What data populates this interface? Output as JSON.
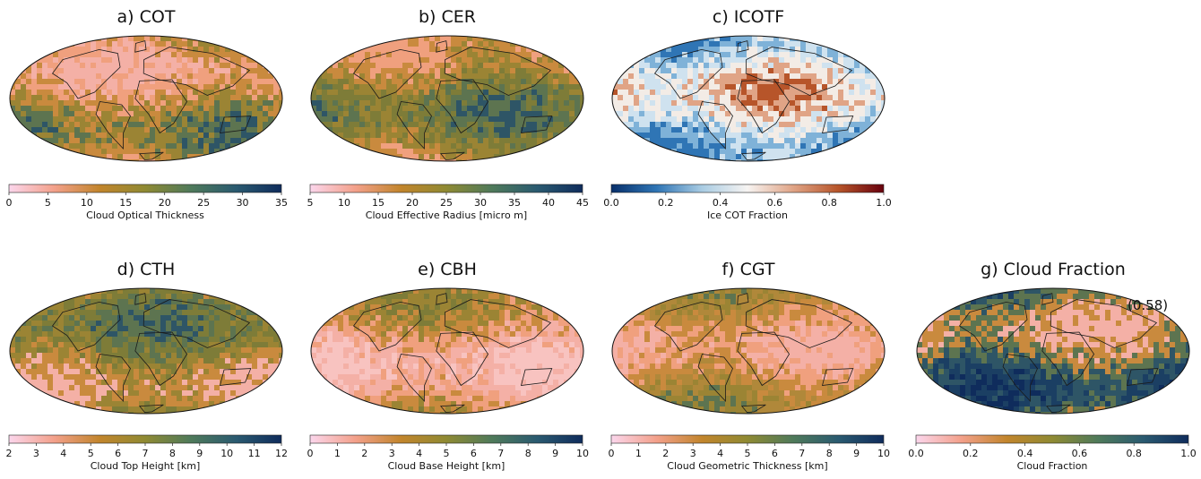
{
  "chart_data": [
    {
      "type": "heatmap",
      "title": "a) COT",
      "colorbar": {
        "label": "Cloud Optical Thickness",
        "range": [
          0,
          35
        ],
        "ticks": [
          "0",
          "5",
          "10",
          "15",
          "20",
          "25",
          "30",
          "35"
        ],
        "colors": [
          "#fbd6ec",
          "#f3a08a",
          "#c2852c",
          "#8f8a33",
          "#4f7a5a",
          "#2a5a70",
          "#0f2c5c"
        ]
      },
      "map_colors": [
        "#f4b0a6",
        "#f0a07e",
        "#c98a3e",
        "#9b8434",
        "#5d7450",
        "#2e5566"
      ]
    },
    {
      "type": "heatmap",
      "title": "b) CER",
      "colorbar": {
        "label": "Cloud Effective Radius [micro m]",
        "range": [
          5,
          45
        ],
        "ticks": [
          "5",
          "10",
          "15",
          "20",
          "25",
          "30",
          "35",
          "40",
          "45"
        ],
        "colors": [
          "#fbd6ec",
          "#f3a08a",
          "#c2852c",
          "#8f8a33",
          "#4f7a5a",
          "#2a5a70",
          "#0f2c5c"
        ]
      },
      "map_colors": [
        "#f0a07e",
        "#c98a3e",
        "#9b8434",
        "#7e7c38",
        "#5d7450",
        "#2e5566"
      ]
    },
    {
      "type": "heatmap",
      "title": "c)  ICOTF",
      "colorbar": {
        "label": "Ice COT Fraction",
        "range": [
          0,
          1
        ],
        "ticks": [
          "0.0",
          "0.2",
          "0.4",
          "0.6",
          "0.8",
          "1.0"
        ],
        "colors": [
          "#08306b",
          "#2f75b5",
          "#a9cce3",
          "#f7f4f2",
          "#e0a486",
          "#b7552a",
          "#67000d"
        ]
      },
      "map_colors": [
        "#2f75b5",
        "#7fb2d8",
        "#cfe2ef",
        "#f3ece6",
        "#e0a486",
        "#b7552a"
      ]
    },
    {
      "type": "heatmap",
      "title": "d) CTH",
      "colorbar": {
        "label": "Cloud Top Height [km]",
        "range": [
          2,
          12
        ],
        "ticks": [
          "2",
          "3",
          "4",
          "5",
          "6",
          "7",
          "8",
          "9",
          "10",
          "11",
          "12"
        ],
        "colors": [
          "#fbd6ec",
          "#f3a08a",
          "#c2852c",
          "#8f8a33",
          "#4f7a5a",
          "#2a5a70",
          "#0f2c5c"
        ]
      },
      "map_colors": [
        "#f4b0a6",
        "#c98a3e",
        "#9b8434",
        "#7e7c38",
        "#5d7450",
        "#2e5566"
      ]
    },
    {
      "type": "heatmap",
      "title": "e) CBH",
      "colorbar": {
        "label": "Cloud Base Height [km]",
        "range": [
          0,
          10
        ],
        "ticks": [
          "0",
          "1",
          "2",
          "3",
          "4",
          "5",
          "6",
          "7",
          "8",
          "9",
          "10"
        ],
        "colors": [
          "#fbd6ec",
          "#f3a08a",
          "#c2852c",
          "#8f8a33",
          "#4f7a5a",
          "#2a5a70",
          "#0f2c5c"
        ]
      },
      "map_colors": [
        "#f8c3c0",
        "#f4b0a6",
        "#f0a07e",
        "#c98a3e",
        "#9b8434",
        "#7e7c38"
      ]
    },
    {
      "type": "heatmap",
      "title": "f) CGT",
      "colorbar": {
        "label": "Cloud Geometric Thickness [km]",
        "range": [
          0,
          10
        ],
        "ticks": [
          "0",
          "1",
          "2",
          "3",
          "4",
          "5",
          "6",
          "7",
          "8",
          "9",
          "10"
        ],
        "colors": [
          "#fbd6ec",
          "#f3a08a",
          "#c2852c",
          "#8f8a33",
          "#4f7a5a",
          "#2a5a70",
          "#0f2c5c"
        ]
      },
      "map_colors": [
        "#f4b0a6",
        "#f0a07e",
        "#c98a3e",
        "#b0883a",
        "#9b8434",
        "#5d7450"
      ]
    },
    {
      "type": "heatmap",
      "title": "g) Cloud Fraction",
      "annotation": "(0.58)",
      "colorbar": {
        "label": "Cloud Fraction",
        "range": [
          0,
          1
        ],
        "ticks": [
          "0.0",
          "0.2",
          "0.4",
          "0.6",
          "0.8",
          "1.0"
        ],
        "colors": [
          "#fbd6ec",
          "#f3a08a",
          "#c2852c",
          "#8f8a33",
          "#4f7a5a",
          "#2a5a70",
          "#0f2c5c"
        ]
      },
      "map_colors": [
        "#f4b0a6",
        "#c98a3e",
        "#5d7450",
        "#2e5566",
        "#1b3f63",
        "#0f2c5c"
      ]
    }
  ]
}
